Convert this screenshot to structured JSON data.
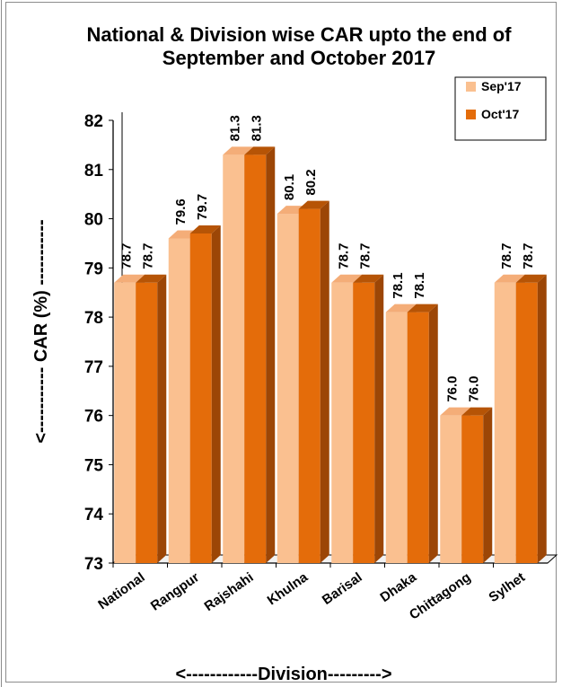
{
  "chart_data": {
    "type": "bar",
    "title_lines": [
      "National & Division wise CAR upto the end of",
      "September and October 2017"
    ],
    "xlabel": "<------------Division--------->",
    "ylabel": "<----------- CAR (%) -----------",
    "ylim": [
      73,
      82
    ],
    "yticks": [
      "73",
      "74",
      "75",
      "76",
      "77",
      "78",
      "79",
      "80",
      "81",
      "82"
    ],
    "categories": [
      "National",
      "Rangpur",
      "Rajshahi",
      "Khulna",
      "Barisal",
      "Dhaka",
      "Chittagong",
      "Sylhet"
    ],
    "series": [
      {
        "name": "Sep'17",
        "color": "#fac090",
        "side": "#d99a66",
        "top": "#f4ad78",
        "values": [
          78.7,
          79.6,
          81.3,
          80.1,
          78.7,
          78.1,
          76.0,
          78.7
        ],
        "labels": [
          "78.7",
          "79.6",
          "81.3",
          "80.1",
          "78.7",
          "78.1",
          "76.0",
          "78.7"
        ]
      },
      {
        "name": "Oct'17",
        "color": "#e46c0a",
        "side": "#9c4606",
        "top": "#b65406",
        "values": [
          78.7,
          79.7,
          81.3,
          80.2,
          78.7,
          78.1,
          76.0,
          78.7
        ],
        "labels": [
          "78.7",
          "79.7",
          "81.3",
          "80.2",
          "78.7",
          "78.1",
          "76.0",
          "78.7"
        ]
      }
    ],
    "legend_position": "top-right",
    "grid": false
  }
}
